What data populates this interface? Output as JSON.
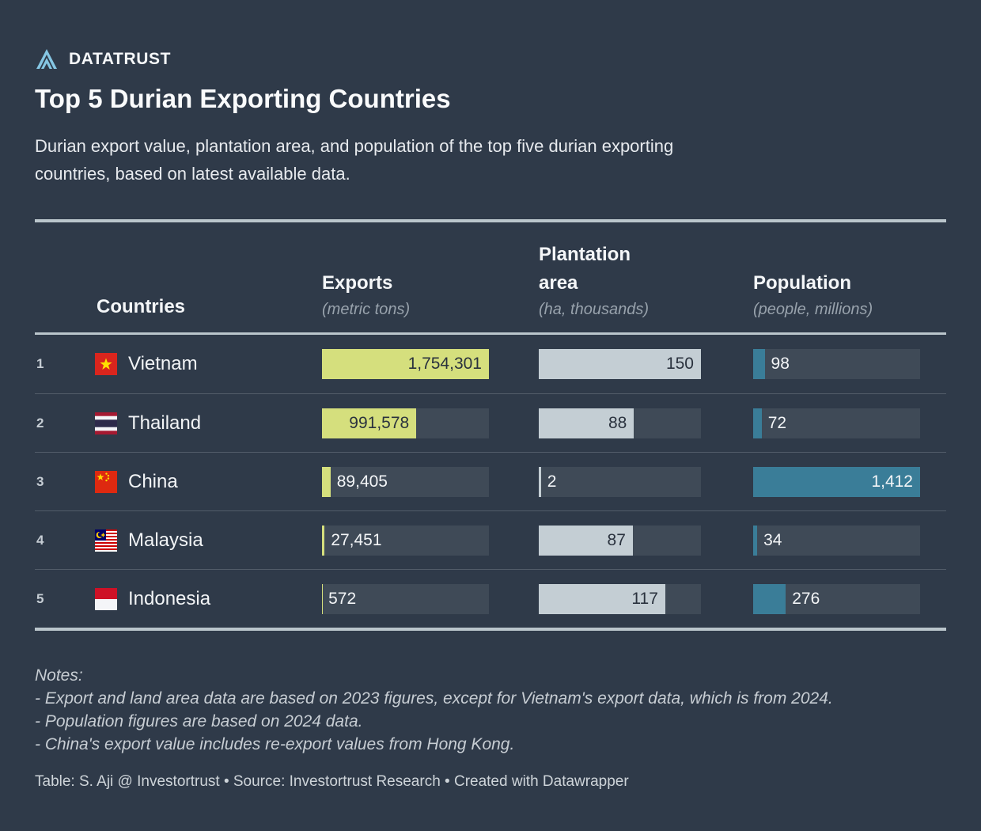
{
  "brand": {
    "name": "DATATRUST"
  },
  "header": {
    "title": "Top 5 Durian Exporting Countries",
    "description_lines": [
      "Durian export value, plantation area, and population of the top five durian exporting",
      "countries, based on latest available data."
    ]
  },
  "table": {
    "columns": {
      "countries": "Countries",
      "exports_label": "Exports",
      "exports_unit": "(metric tons)",
      "area_label": "Plantation area",
      "area_unit": "(ha, thousands)",
      "population_label": "Population",
      "population_unit": "(people, millions)"
    },
    "rows": [
      {
        "rank": "1",
        "country": "Vietnam",
        "flag": "vietnam-flag-icon",
        "exports": {
          "text": "1,754,301",
          "frac": 1,
          "pos": "in",
          "tone": "dark"
        },
        "area": {
          "text": "150",
          "frac": 1,
          "pos": "in",
          "tone": "dark"
        },
        "population": {
          "text": "98",
          "frac": 0.069,
          "pos": "out",
          "tone": "light"
        }
      },
      {
        "rank": "2",
        "country": "Thailand",
        "flag": "thailand-flag-icon",
        "exports": {
          "text": "991,578",
          "frac": 0.565,
          "pos": "in",
          "tone": "dark"
        },
        "area": {
          "text": "88",
          "frac": 0.587,
          "pos": "in",
          "tone": "dark"
        },
        "population": {
          "text": "72",
          "frac": 0.051,
          "pos": "out",
          "tone": "light"
        }
      },
      {
        "rank": "3",
        "country": "China",
        "flag": "china-flag-icon",
        "exports": {
          "text": "89,405",
          "frac": 0.051,
          "pos": "out",
          "tone": "light"
        },
        "area": {
          "text": "2",
          "frac": 0.0133,
          "pos": "out",
          "tone": "light"
        },
        "population": {
          "text": "1,412",
          "frac": 1,
          "pos": "in",
          "tone": "light"
        }
      },
      {
        "rank": "4",
        "country": "Malaysia",
        "flag": "malaysia-flag-icon",
        "exports": {
          "text": "27,451",
          "frac": 0.0157,
          "pos": "out",
          "tone": "light"
        },
        "area": {
          "text": "87",
          "frac": 0.58,
          "pos": "in",
          "tone": "dark"
        },
        "population": {
          "text": "34",
          "frac": 0.0241,
          "pos": "out",
          "tone": "light"
        }
      },
      {
        "rank": "5",
        "country": "Indonesia",
        "flag": "indonesia-flag-icon",
        "exports": {
          "text": "572",
          "frac": 0.0005,
          "pos": "out",
          "tone": "light"
        },
        "area": {
          "text": "117",
          "frac": 0.78,
          "pos": "in",
          "tone": "dark"
        },
        "population": {
          "text": "276",
          "frac": 0.1955,
          "pos": "out",
          "tone": "light"
        }
      }
    ]
  },
  "notes": {
    "lines": [
      "Notes:",
      "- Export and land area data are based on 2023 figures, except for Vietnam's export data, which is from 2024.",
      "- Population figures are based on 2024 data.",
      "- China's export value includes re-export values from Hong Kong."
    ]
  },
  "footer": {
    "text": "Table: S. Aji @ Investortrust • Source: Investortrust Research • Created with Datawrapper"
  },
  "colors": {
    "background": "#2f3a49",
    "track": "#3f4a57",
    "exports_fill": "#d5df7d",
    "area_fill": "#c4ced4",
    "population_fill": "#3a7d98",
    "rule": "#bac5cb",
    "separator": "#525c69",
    "logo": "#85c6e3",
    "text_dark": "#2a323e",
    "text_light": "#f3f5f7"
  },
  "chart_data": {
    "type": "table",
    "title": "Top 5 Durian Exporting Countries",
    "categories": [
      "Vietnam",
      "Thailand",
      "China",
      "Malaysia",
      "Indonesia"
    ],
    "series": [
      {
        "name": "Exports (metric tons)",
        "values": [
          1754301,
          991578,
          89405,
          27451,
          572
        ],
        "max": 1754301
      },
      {
        "name": "Plantation area (ha, thousands)",
        "values": [
          150,
          88,
          2,
          87,
          117
        ],
        "max": 150
      },
      {
        "name": "Population (people, millions)",
        "values": [
          98,
          72,
          1412,
          34,
          276
        ],
        "max": 1412
      }
    ],
    "legend_position": "none",
    "grid": false
  }
}
